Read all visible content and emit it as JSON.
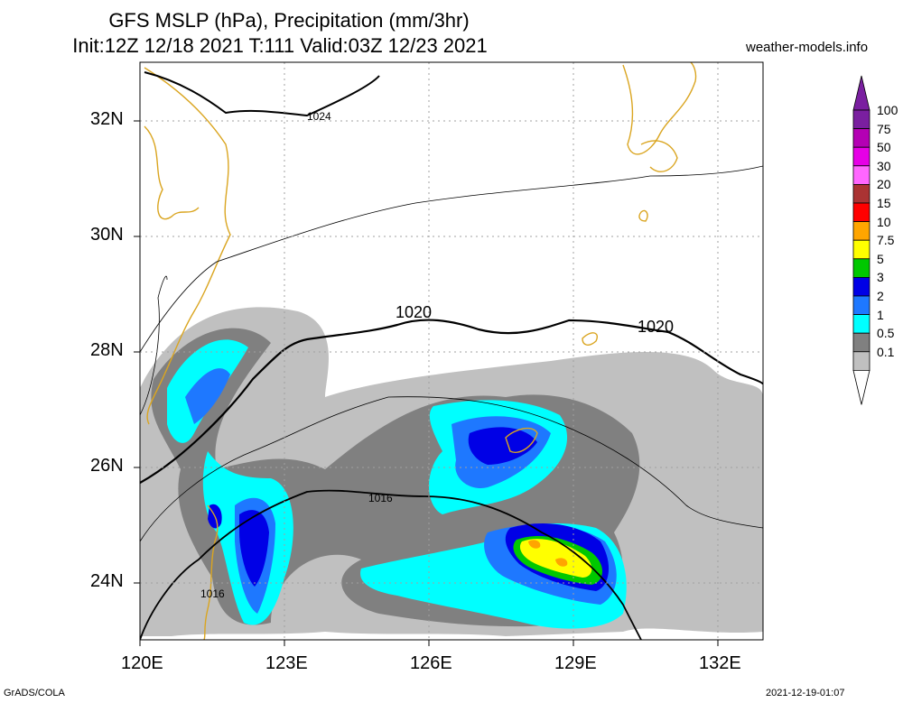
{
  "header": {
    "title_line1": "GFS MSLP (hPa), Precipitation (mm/3hr)",
    "title_line2": "Init:12Z 12/18 2021 T:111 Valid:03Z 12/23 2021",
    "site": "weather-models.info"
  },
  "axes": {
    "lat_labels": [
      "32N",
      "30N",
      "28N",
      "26N",
      "24N"
    ],
    "lon_labels": [
      "120E",
      "123E",
      "126E",
      "129E",
      "132E"
    ]
  },
  "isobar_labels": {
    "a": "1024",
    "b": "1020",
    "c": "1020",
    "d": "1016",
    "e": "1016"
  },
  "colorbar": {
    "labels": [
      "100",
      "75",
      "50",
      "30",
      "20",
      "15",
      "10",
      "7.5",
      "5",
      "3",
      "2",
      "1",
      "0.5",
      "0.1"
    ],
    "colors": [
      "#7a1fa0",
      "#b400b4",
      "#e600e6",
      "#ff66ff",
      "#aa3333",
      "#ff0000",
      "#ffa500",
      "#ffff00",
      "#00c800",
      "#0000e6",
      "#1e78ff",
      "#00ffff",
      "#808080",
      "#c0c0c0"
    ]
  },
  "footer": {
    "left": "GrADS/COLA",
    "right": "2021-12-19-01:07"
  }
}
